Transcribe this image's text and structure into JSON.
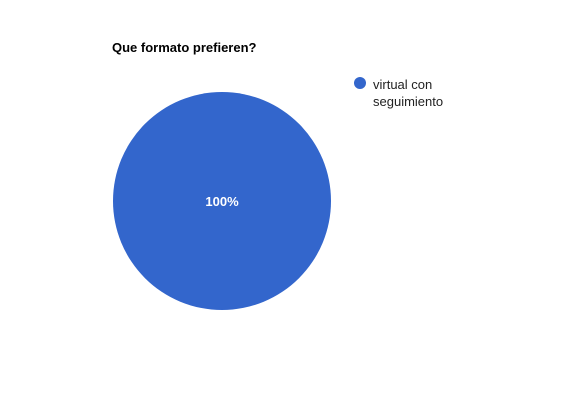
{
  "chart_data": {
    "type": "pie",
    "title": "Que formato prefieren?",
    "slices": [
      {
        "label": "virtual con seguimiento",
        "value": 100,
        "percent_label": "100%",
        "color": "#3366cc"
      }
    ],
    "legend_position": "right"
  }
}
